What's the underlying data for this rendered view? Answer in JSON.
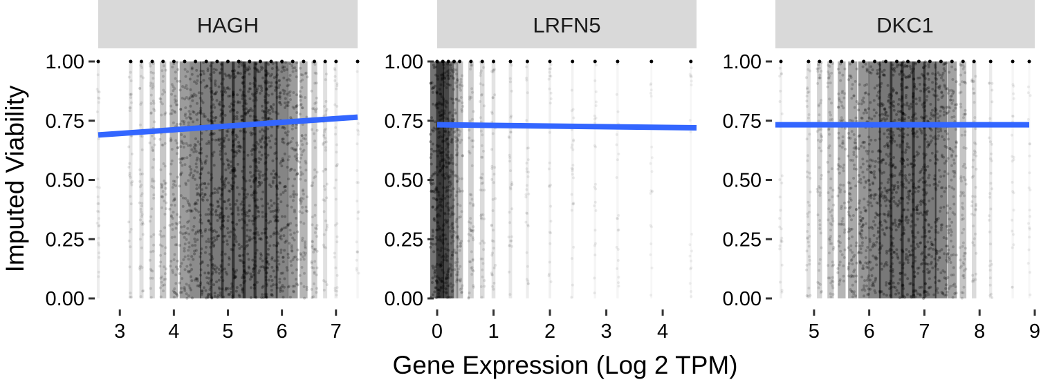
{
  "chart_data": {
    "type": "scatter",
    "xlabel": "Gene Expression (Log 2 TPM)",
    "ylabel": "Imputed Viability",
    "ylim": [
      0,
      1
    ],
    "yticks": [
      "0.00",
      "0.25",
      "0.50",
      "0.75",
      "1.00"
    ],
    "grid": false,
    "legend": "none",
    "colors": {
      "points": "#000000",
      "fit_line": "#3366ff",
      "strip_background": "#d9d9d9"
    },
    "panels": [
      {
        "title": "HAGH",
        "xlim": [
          2.6,
          7.4
        ],
        "xticks": [
          3,
          4,
          5,
          6,
          7
        ],
        "fit_line": {
          "x": [
            2.6,
            7.4
          ],
          "y": [
            0.69,
            0.765
          ]
        },
        "point_columns": [
          {
            "x": 2.6,
            "density": 0.12
          },
          {
            "x": 3.2,
            "density": 0.18
          },
          {
            "x": 3.4,
            "density": 0.22
          },
          {
            "x": 3.6,
            "density": 0.3
          },
          {
            "x": 3.8,
            "density": 0.4
          },
          {
            "x": 4.0,
            "density": 0.55
          },
          {
            "x": 4.2,
            "density": 0.7
          },
          {
            "x": 4.4,
            "density": 0.82
          },
          {
            "x": 4.6,
            "density": 0.9
          },
          {
            "x": 4.8,
            "density": 0.95
          },
          {
            "x": 5.0,
            "density": 0.98
          },
          {
            "x": 5.2,
            "density": 1.0
          },
          {
            "x": 5.4,
            "density": 1.0
          },
          {
            "x": 5.6,
            "density": 0.98
          },
          {
            "x": 5.8,
            "density": 0.95
          },
          {
            "x": 6.0,
            "density": 0.88
          },
          {
            "x": 6.2,
            "density": 0.7
          },
          {
            "x": 6.4,
            "density": 0.52
          },
          {
            "x": 6.6,
            "density": 0.35
          },
          {
            "x": 6.8,
            "density": 0.22
          },
          {
            "x": 7.0,
            "density": 0.14
          },
          {
            "x": 7.4,
            "density": 0.08
          }
        ]
      },
      {
        "title": "LRFN5",
        "xlim": [
          0,
          4.6
        ],
        "xticks": [
          0,
          1,
          2,
          3,
          4
        ],
        "fit_line": {
          "x": [
            0,
            4.6
          ],
          "y": [
            0.733,
            0.72
          ]
        },
        "point_columns": [
          {
            "x": 0.0,
            "density": 1.0
          },
          {
            "x": 0.1,
            "density": 0.95
          },
          {
            "x": 0.2,
            "density": 0.75
          },
          {
            "x": 0.3,
            "density": 0.55
          },
          {
            "x": 0.4,
            "density": 0.42
          },
          {
            "x": 0.6,
            "density": 0.32
          },
          {
            "x": 0.8,
            "density": 0.25
          },
          {
            "x": 1.0,
            "density": 0.2
          },
          {
            "x": 1.3,
            "density": 0.16
          },
          {
            "x": 1.6,
            "density": 0.12
          },
          {
            "x": 2.0,
            "density": 0.1
          },
          {
            "x": 2.4,
            "density": 0.09
          },
          {
            "x": 2.8,
            "density": 0.08
          },
          {
            "x": 3.2,
            "density": 0.07
          },
          {
            "x": 3.8,
            "density": 0.05
          },
          {
            "x": 4.5,
            "density": 0.05
          }
        ]
      },
      {
        "title": "DKC1",
        "xlim": [
          4.3,
          9.0
        ],
        "xticks": [
          5,
          6,
          7,
          8,
          9
        ],
        "fit_line": {
          "x": [
            4.3,
            8.9
          ],
          "y": [
            0.733,
            0.733
          ]
        },
        "point_columns": [
          {
            "x": 4.4,
            "density": 0.1
          },
          {
            "x": 4.9,
            "density": 0.22
          },
          {
            "x": 5.1,
            "density": 0.3
          },
          {
            "x": 5.3,
            "density": 0.4
          },
          {
            "x": 5.5,
            "density": 0.52
          },
          {
            "x": 5.7,
            "density": 0.62
          },
          {
            "x": 5.9,
            "density": 0.75
          },
          {
            "x": 6.1,
            "density": 0.88
          },
          {
            "x": 6.3,
            "density": 0.96
          },
          {
            "x": 6.5,
            "density": 1.0
          },
          {
            "x": 6.7,
            "density": 1.0
          },
          {
            "x": 6.9,
            "density": 0.98
          },
          {
            "x": 7.1,
            "density": 0.94
          },
          {
            "x": 7.3,
            "density": 0.85
          },
          {
            "x": 7.5,
            "density": 0.65
          },
          {
            "x": 7.7,
            "density": 0.42
          },
          {
            "x": 7.9,
            "density": 0.25
          },
          {
            "x": 8.2,
            "density": 0.14
          },
          {
            "x": 8.6,
            "density": 0.08
          },
          {
            "x": 8.9,
            "density": 0.06
          }
        ]
      }
    ]
  }
}
